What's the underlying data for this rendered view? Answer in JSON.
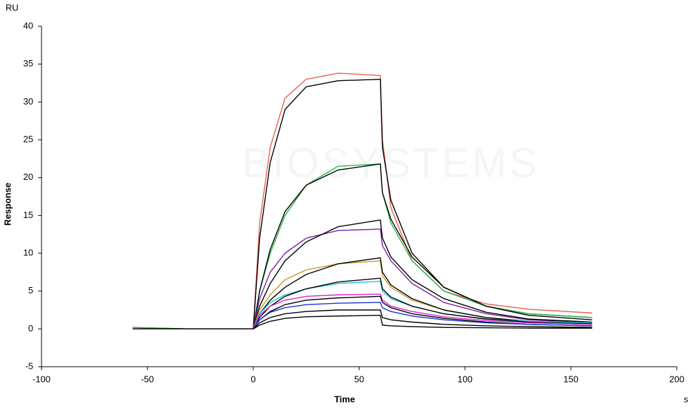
{
  "chart_data": {
    "type": "line",
    "y_unit": "RU",
    "x_unit": "s",
    "ylabel": "Response",
    "xlabel": "Time",
    "watermark": "BIOSYSTEMS",
    "xlim": [
      -100,
      200
    ],
    "xticks": [
      -100,
      -50,
      0,
      50,
      100,
      150,
      200
    ],
    "ylim": [
      -5,
      40
    ],
    "yticks": [
      -5,
      0,
      5,
      10,
      15,
      20,
      25,
      30,
      35,
      40
    ],
    "x": [
      -57,
      -30,
      0,
      3,
      8,
      15,
      25,
      40,
      60,
      61,
      65,
      75,
      90,
      110,
      130,
      160
    ],
    "series": [
      {
        "color": "#e8604c",
        "values": [
          0.2,
          0,
          0,
          14,
          24,
          30.5,
          33,
          33.8,
          33.5,
          25,
          16,
          9,
          5,
          3.3,
          2.6,
          2.1
        ]
      },
      {
        "color": "#000000",
        "values": [
          0,
          0,
          0,
          12,
          22,
          29,
          32,
          32.8,
          33,
          24,
          17,
          10,
          5.5,
          3,
          2,
          1.5
        ]
      },
      {
        "color": "#2bb34a",
        "values": [
          0.2,
          0,
          0,
          5,
          10,
          15,
          19,
          21.5,
          21.8,
          18,
          14,
          9,
          5,
          3,
          2,
          1.5
        ]
      },
      {
        "color": "#000000",
        "values": [
          0,
          0,
          0,
          5,
          10.5,
          15.5,
          19,
          21,
          21.8,
          18,
          14.5,
          9.5,
          5.5,
          3,
          1.8,
          1.2
        ]
      },
      {
        "color": "#7a1fa2",
        "values": [
          0,
          0,
          0,
          4,
          7.5,
          10,
          12,
          13,
          13.2,
          11,
          9,
          6,
          3.5,
          2,
          1.2,
          0.8
        ]
      },
      {
        "color": "#000000",
        "values": [
          0,
          0,
          0,
          3,
          6,
          9,
          11.5,
          13.5,
          14.4,
          12,
          9.5,
          6.5,
          4,
          2.2,
          1.3,
          0.9
        ]
      },
      {
        "color": "#c89b2a",
        "values": [
          0,
          0,
          0,
          2.5,
          4.5,
          6.5,
          7.8,
          8.6,
          9,
          7,
          5.5,
          3.8,
          2.5,
          1.5,
          1,
          0.8
        ]
      },
      {
        "color": "#000000",
        "values": [
          0,
          0,
          0,
          2,
          3.8,
          5.5,
          7.2,
          8.6,
          9.4,
          7.5,
          5.8,
          4,
          2.5,
          1.5,
          1,
          0.7
        ]
      },
      {
        "color": "#19c2d6",
        "values": [
          0,
          0,
          0,
          2,
          3.5,
          4.5,
          5.3,
          6,
          6.3,
          5,
          4,
          3,
          2,
          1.3,
          1,
          0.8
        ]
      },
      {
        "color": "#000000",
        "values": [
          0,
          0,
          0,
          1.5,
          3,
          4.3,
          5.3,
          6.2,
          6.7,
          5.3,
          4.2,
          3,
          2,
          1.3,
          0.9,
          0.6
        ]
      },
      {
        "color": "#e01fd0",
        "values": [
          0,
          0,
          0,
          1.8,
          3,
          3.8,
          4.3,
          4.5,
          4.6,
          3.8,
          3,
          2.3,
          1.6,
          1.1,
          0.8,
          0.6
        ]
      },
      {
        "color": "#000000",
        "values": [
          0,
          0,
          0,
          1.2,
          2.3,
          3.2,
          3.8,
          4.1,
          4.3,
          3.5,
          2.8,
          2,
          1.4,
          0.9,
          0.6,
          0.4
        ]
      },
      {
        "color": "#1a2fd6",
        "values": [
          0,
          0,
          0,
          1.2,
          2.2,
          2.8,
          3.2,
          3.4,
          3.5,
          2.8,
          2.3,
          1.7,
          1.2,
          0.8,
          0.6,
          0.4
        ]
      },
      {
        "color": "#000000",
        "values": [
          0,
          0,
          0,
          0.8,
          1.5,
          2,
          2.3,
          2.5,
          2.5,
          1.5,
          1.2,
          0.9,
          0.6,
          0.4,
          0.3,
          0.2
        ]
      },
      {
        "color": "#000000",
        "values": [
          0,
          0,
          0,
          0.5,
          1,
          1.4,
          1.6,
          1.7,
          1.8,
          0.5,
          0.4,
          0.3,
          0.2,
          0.15,
          0.1,
          0.1
        ]
      }
    ]
  }
}
